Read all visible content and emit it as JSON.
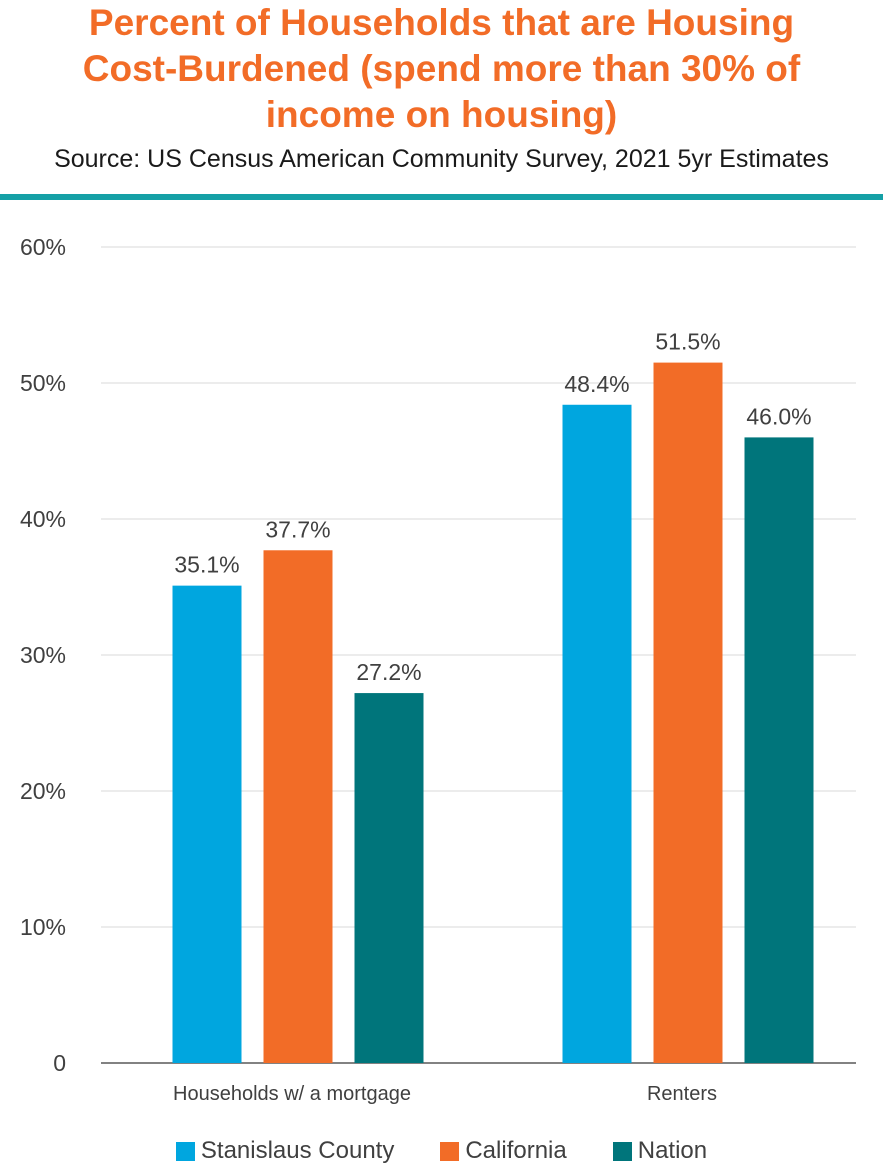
{
  "header": {
    "title": "Percent of Households that are Housing Cost-Burdened (spend more than 30% of income on housing)",
    "subtitle": "Source: US Census American Community Survey, 2021 5yr Estimates"
  },
  "colors": {
    "title": "#f26c27",
    "rule": "#15a0a6",
    "stanislaus": "#00a6df",
    "california": "#f26c27",
    "nation": "#00757b"
  },
  "chart_data": {
    "type": "bar",
    "title": "Percent of Households that are Housing Cost-Burdened (spend more than 30% of income on housing)",
    "xlabel": "",
    "ylabel": "",
    "ylim": [
      0,
      60
    ],
    "yticks": [
      0,
      10,
      20,
      30,
      40,
      50,
      60
    ],
    "ytick_labels": [
      "0",
      "10%",
      "20%",
      "30%",
      "40%",
      "50%",
      "60%"
    ],
    "grid": true,
    "legend_position": "bottom",
    "categories": [
      "Households w/ a mortgage",
      "Renters"
    ],
    "series": [
      {
        "name": "Stanislaus County",
        "color": "#00a6df",
        "values": [
          35.1,
          48.4
        ],
        "labels": [
          "35.1%",
          "48.4%"
        ]
      },
      {
        "name": "California",
        "color": "#f26c27",
        "values": [
          37.7,
          51.5
        ],
        "labels": [
          "37.7%",
          "51.5%"
        ]
      },
      {
        "name": "Nation",
        "color": "#00757b",
        "values": [
          27.2,
          46.0
        ],
        "labels": [
          "27.2%",
          "46.0%"
        ]
      }
    ]
  }
}
